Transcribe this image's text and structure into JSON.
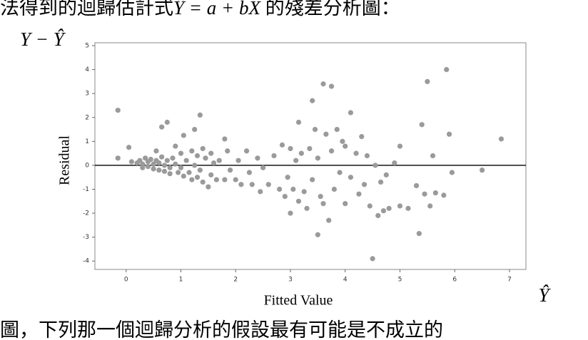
{
  "top_text": {
    "prefix": "法得到的迴歸估計式",
    "formula": "Ŷ = a + bX",
    "suffix": " 的殘差分析圖："
  },
  "bottom_text": "圖，下列那一個迴歸分析的假設最有可能是不成立的",
  "chart_data": {
    "type": "scatter",
    "y_symbol": "Y − Ŷ",
    "x_symbol": "Ŷ",
    "xlabel": "Fitted Value",
    "ylabel": "Residual",
    "xlim": [
      -0.57,
      7.3
    ],
    "ylim": [
      -4.35,
      5.12
    ],
    "xticks": [
      0,
      1,
      2,
      3,
      4,
      5,
      6,
      7
    ],
    "yticks": [
      -4,
      -3,
      -2,
      -1,
      0,
      1,
      2,
      3,
      4,
      5
    ],
    "hline": 0,
    "color": "#9a9a9a",
    "x": [
      -0.15,
      -0.15,
      0.05,
      0.1,
      0.2,
      0.25,
      0.3,
      0.3,
      0.35,
      0.4,
      0.4,
      0.45,
      0.5,
      0.5,
      0.55,
      0.55,
      0.6,
      0.6,
      0.65,
      0.65,
      0.7,
      0.7,
      0.75,
      0.75,
      0.8,
      0.8,
      0.85,
      0.9,
      0.9,
      0.95,
      1.0,
      1.0,
      1.05,
      1.05,
      1.1,
      1.15,
      1.2,
      1.2,
      1.25,
      1.25,
      1.3,
      1.3,
      1.35,
      1.35,
      1.4,
      1.4,
      1.45,
      1.5,
      1.55,
      1.55,
      1.6,
      1.65,
      1.7,
      1.8,
      1.8,
      1.85,
      1.9,
      2.0,
      2.05,
      2.1,
      2.2,
      2.25,
      2.3,
      2.4,
      2.45,
      2.5,
      2.6,
      2.7,
      2.8,
      2.85,
      2.9,
      2.95,
      3.0,
      3.0,
      3.05,
      3.1,
      3.15,
      3.15,
      3.2,
      3.25,
      3.3,
      3.35,
      3.4,
      3.4,
      3.45,
      3.5,
      3.5,
      3.55,
      3.6,
      3.6,
      3.65,
      3.7,
      3.75,
      3.75,
      3.8,
      3.85,
      3.9,
      3.95,
      4.0,
      4.0,
      4.1,
      4.1,
      4.2,
      4.25,
      4.3,
      4.35,
      4.4,
      4.45,
      4.5,
      4.55,
      4.6,
      4.65,
      4.7,
      4.75,
      4.8,
      4.9,
      5.0,
      5.0,
      5.15,
      5.3,
      5.35,
      5.4,
      5.45,
      5.5,
      5.55,
      5.6,
      5.65,
      5.8,
      5.85,
      5.9,
      5.95,
      6.5,
      6.85
    ],
    "values": [
      2.3,
      0.3,
      0.75,
      0.15,
      0.1,
      0.2,
      0.05,
      -0.1,
      0.3,
      0.15,
      -0.05,
      0.25,
      0.05,
      -0.15,
      0.6,
      0.2,
      0.1,
      -0.2,
      1.6,
      0.35,
      0.0,
      -0.25,
      1.8,
      0.2,
      -0.1,
      -0.35,
      0.3,
      0.8,
      0.05,
      -0.3,
      0.5,
      -0.1,
      1.25,
      -0.45,
      0.2,
      -0.3,
      0.6,
      -0.6,
      1.5,
      0.0,
      0.4,
      -0.5,
      2.1,
      -0.2,
      0.7,
      -0.7,
      0.3,
      -0.9,
      0.5,
      -0.4,
      0.1,
      -0.6,
      0.2,
      1.1,
      -0.6,
      0.6,
      -0.2,
      -0.6,
      0.2,
      -0.8,
      0.6,
      -0.3,
      -0.8,
      0.3,
      -1.1,
      -0.1,
      -0.8,
      0.4,
      -1.0,
      0.85,
      -1.3,
      -0.5,
      0.7,
      -2.0,
      -1.0,
      0.2,
      1.8,
      -1.5,
      0.5,
      -1.1,
      -1.8,
      0.7,
      -0.6,
      2.7,
      1.5,
      -2.9,
      0.3,
      -1.3,
      3.4,
      -1.6,
      1.3,
      -2.3,
      3.3,
      0.6,
      -1.0,
      1.5,
      -0.3,
      1.0,
      -1.6,
      0.8,
      2.2,
      -0.5,
      0.5,
      -1.2,
      1.2,
      -0.8,
      0.4,
      -1.7,
      -3.9,
      0.0,
      -2.1,
      -0.7,
      -1.9,
      -0.4,
      -1.8,
      0.1,
      0.8,
      -1.7,
      -1.8,
      -0.85,
      -2.85,
      1.7,
      -1.2,
      3.5,
      -1.7,
      0.4,
      -1.15,
      -1.25,
      4.0,
      1.3,
      -0.3,
      -0.2,
      1.1
    ]
  }
}
